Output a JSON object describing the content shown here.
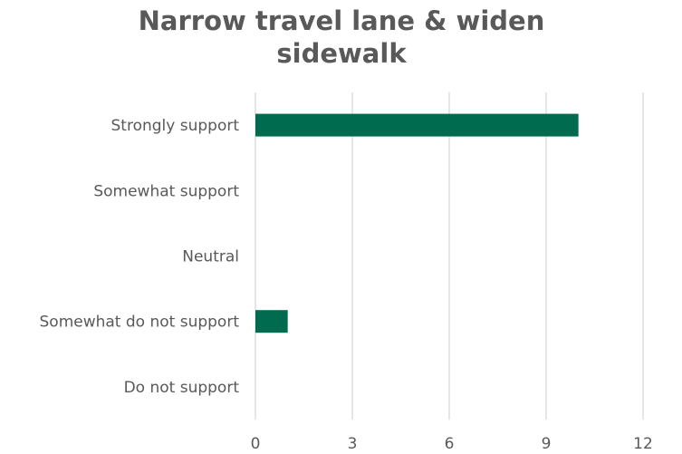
{
  "chart_data": {
    "type": "bar",
    "orientation": "horizontal",
    "title_lines": [
      "Narrow travel lane & widen",
      "sidewalk"
    ],
    "categories": [
      "Strongly support",
      "Somewhat support",
      "Neutral",
      "Somewhat do not support",
      "Do not support"
    ],
    "values": [
      10,
      0,
      0,
      1,
      0
    ],
    "xlim": [
      0,
      12
    ],
    "xticks": [
      "0",
      "3",
      "6",
      "9",
      "12"
    ],
    "xlabel": "",
    "ylabel": "",
    "grid": "vertical",
    "legend": "none",
    "bar_color": "#006b4f",
    "grid_color": "#d9d9d9",
    "text_color": "#595959"
  }
}
